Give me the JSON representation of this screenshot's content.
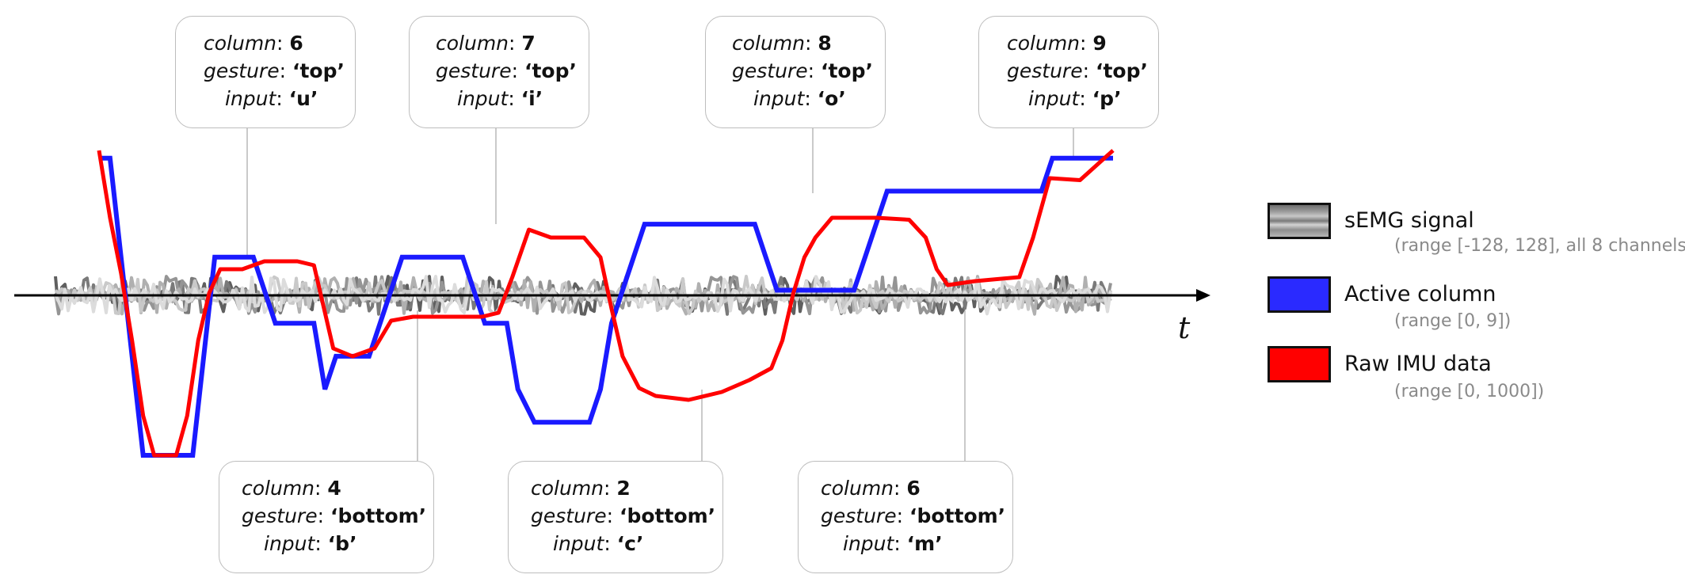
{
  "chart_data": {
    "type": "line",
    "x_axis_label": "t",
    "grid": false,
    "legend_position": "right",
    "series": [
      {
        "name": "sEMG signal",
        "range_label": "(range [-128, 128], all 8 channels)",
        "color": "#8c8c8c",
        "kind": "band"
      },
      {
        "name": "Active column",
        "range_label": "(range [0, 9])",
        "color": "#1a1aff",
        "kind": "step",
        "points": [
          [
            0,
            9
          ],
          [
            0.8,
            9
          ],
          [
            1.6,
            6
          ],
          [
            2.4,
            3
          ],
          [
            3.2,
            0
          ],
          [
            6.8,
            0
          ],
          [
            7.6,
            3
          ],
          [
            8.4,
            6
          ],
          [
            11.2,
            6
          ],
          [
            12.0,
            5
          ],
          [
            12.8,
            4
          ],
          [
            15.6,
            4
          ],
          [
            16.4,
            2
          ],
          [
            17.2,
            3
          ],
          [
            19.6,
            3
          ],
          [
            20.4,
            4
          ],
          [
            21.2,
            5
          ],
          [
            22.0,
            6
          ],
          [
            26.4,
            6
          ],
          [
            27.2,
            5
          ],
          [
            28.0,
            4
          ],
          [
            29.6,
            4
          ],
          [
            30.4,
            2
          ],
          [
            31.6,
            1
          ],
          [
            35.6,
            1
          ],
          [
            36.4,
            2
          ],
          [
            37.2,
            4
          ],
          [
            38.0,
            5
          ],
          [
            38.8,
            6
          ],
          [
            39.6,
            7
          ],
          [
            47.6,
            7
          ],
          [
            48.4,
            6
          ],
          [
            49.2,
            5
          ],
          [
            54.8,
            5
          ],
          [
            55.6,
            6
          ],
          [
            56.4,
            7
          ],
          [
            57.2,
            8
          ],
          [
            60.4,
            8
          ],
          [
            68.4,
            8
          ],
          [
            69.2,
            9
          ],
          [
            73.6,
            9
          ]
        ]
      },
      {
        "name": "Raw IMU data",
        "range_label": "(range [0, 1000])",
        "color": "#ff0000",
        "kind": "line",
        "points": [
          [
            0,
            920
          ],
          [
            0.8,
            750
          ],
          [
            1.6,
            610
          ],
          [
            2.4,
            440
          ],
          [
            3.2,
            250
          ],
          [
            4.0,
            150
          ],
          [
            5.6,
            150
          ],
          [
            6.4,
            250
          ],
          [
            7.2,
            440
          ],
          [
            8.0,
            560
          ],
          [
            8.8,
            620
          ],
          [
            10.4,
            620
          ],
          [
            12.0,
            640
          ],
          [
            14.4,
            640
          ],
          [
            15.6,
            630
          ],
          [
            17.0,
            420
          ],
          [
            18.4,
            400
          ],
          [
            20.0,
            420
          ],
          [
            21.2,
            490
          ],
          [
            22.8,
            500
          ],
          [
            24.4,
            500
          ],
          [
            26.4,
            500
          ],
          [
            27.8,
            500
          ],
          [
            29.0,
            510
          ],
          [
            30.0,
            600
          ],
          [
            31.2,
            720
          ],
          [
            32.8,
            700
          ],
          [
            35.2,
            700
          ],
          [
            36.4,
            650
          ],
          [
            37.2,
            520
          ],
          [
            38.0,
            400
          ],
          [
            39.2,
            320
          ],
          [
            40.4,
            300
          ],
          [
            42.8,
            290
          ],
          [
            45.2,
            310
          ],
          [
            47.2,
            340
          ],
          [
            48.8,
            370
          ],
          [
            49.6,
            440
          ],
          [
            50.4,
            560
          ],
          [
            51.2,
            650
          ],
          [
            52.0,
            700
          ],
          [
            53.2,
            750
          ],
          [
            56.4,
            750
          ],
          [
            58.8,
            745
          ],
          [
            60.0,
            700
          ],
          [
            60.8,
            620
          ],
          [
            61.6,
            580
          ],
          [
            63.6,
            590
          ],
          [
            66.8,
            600
          ],
          [
            67.8,
            700
          ],
          [
            69.0,
            850
          ],
          [
            71.2,
            845
          ],
          [
            73.6,
            920
          ]
        ]
      }
    ],
    "annotations": [
      {
        "column": "6",
        "gesture": "‘top’",
        "input": "‘u’"
      },
      {
        "column": "7",
        "gesture": "‘top’",
        "input": "‘i’"
      },
      {
        "column": "8",
        "gesture": "‘top’",
        "input": "‘o’"
      },
      {
        "column": "9",
        "gesture": "‘top’",
        "input": "‘p’"
      },
      {
        "column": "4",
        "gesture": "‘bottom’",
        "input": "‘b’"
      },
      {
        "column": "2",
        "gesture": "‘bottom’",
        "input": "‘c’"
      },
      {
        "column": "6",
        "gesture": "‘bottom’",
        "input": "‘m’"
      }
    ],
    "annotation_keys": {
      "column": "column",
      "gesture": "gesture",
      "input": "input"
    }
  }
}
